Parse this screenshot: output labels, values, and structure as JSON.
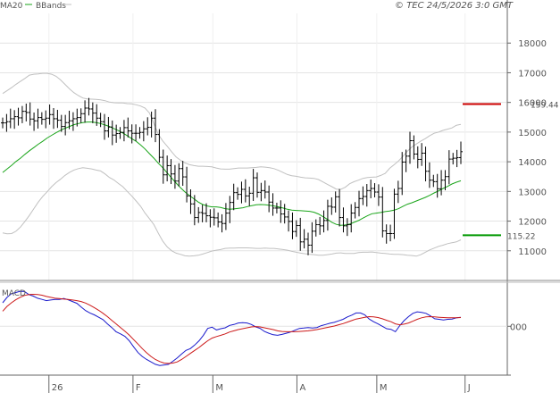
{
  "header": {
    "legend_ma": "MA20",
    "legend_bb": "BBands",
    "copyright": "© TEC 24/5/2026 3:0 GMT"
  },
  "colors": {
    "price": "#000000",
    "ma20": "#1aa51a",
    "bbands": "#c0c0c0",
    "macd_line": "#1a1acc",
    "signal_line": "#cc1a1a",
    "resistance": "#cc0000",
    "support": "#009900",
    "grid": "#e4e4e4",
    "axis": "#666666"
  },
  "chart_data": [
    {
      "type": "line",
      "panel": "price",
      "ylim": [
        10000,
        19000
      ],
      "yticks": [
        11000,
        12000,
        13000,
        14000,
        15000,
        16000,
        17000,
        18000
      ],
      "ytick_labels": [
        "11000",
        "12000",
        "13000",
        "14000",
        "15000",
        "16000",
        "17000",
        "18000"
      ],
      "xlim": [
        0,
        109
      ],
      "xtick_positions": [
        11,
        31,
        50,
        70,
        89,
        110
      ],
      "xtick_labels": [
        "26",
        "F",
        "M",
        "A",
        "M",
        "J"
      ],
      "series": [
        {
          "name": "MA20",
          "kind": "ma20",
          "values": [
            13640,
            13760,
            13880,
            14010,
            14120,
            14250,
            14370,
            14480,
            14590,
            14690,
            14800,
            14890,
            14980,
            15060,
            15130,
            15190,
            15250,
            15290,
            15320,
            15340,
            15340,
            15320,
            15290,
            15240,
            15190,
            15120,
            15050,
            14970,
            14880,
            14780,
            14690,
            14570,
            14430,
            14270,
            14120,
            13950,
            13800,
            13620,
            13450,
            13280,
            13120,
            12980,
            12860,
            12750,
            12640,
            12560,
            12510,
            12480,
            12480,
            12460,
            12420,
            12400,
            12410,
            12430,
            12450,
            12490,
            12520,
            12550,
            12560,
            12550,
            12530,
            12510,
            12480,
            12440,
            12400,
            12370,
            12360,
            12350,
            12340,
            12330,
            12300,
            12240,
            12150,
            12060,
            11960,
            11890,
            11860,
            11870,
            11900,
            11960,
            12020,
            12100,
            12180,
            12250,
            12270,
            12290,
            12320,
            12340,
            12370,
            12420,
            12500,
            12570,
            12620,
            12680,
            12740,
            12800,
            12870,
            12950,
            13020,
            13100,
            13170,
            13250,
            13310,
            13360
          ]
        },
        {
          "name": "BBands",
          "kind": "bb_upper",
          "values": [
            16300,
            16400,
            16500,
            16610,
            16710,
            16810,
            16920,
            16950,
            16960,
            16980,
            16980,
            16950,
            16880,
            16760,
            16610,
            16460,
            16330,
            16230,
            16150,
            16120,
            16110,
            16100,
            16090,
            16060,
            16010,
            15990,
            15980,
            15980,
            15960,
            15950,
            15920,
            15880,
            15810,
            15640,
            15290,
            14920,
            14700,
            14520,
            14330,
            14160,
            14050,
            13960,
            13900,
            13870,
            13850,
            13850,
            13840,
            13830,
            13790,
            13760,
            13750,
            13750,
            13770,
            13790,
            13790,
            13790,
            13800,
            13810,
            13830,
            13820,
            13800,
            13770,
            13710,
            13640,
            13570,
            13530,
            13510,
            13480,
            13460,
            13450,
            13440,
            13400,
            13320,
            13240,
            13160,
            13080,
            13070,
            13140,
            13260,
            13330,
            13380,
            13440,
            13470,
            13480,
            13490,
            13540,
            13610,
            13780,
            13900,
            14030,
            14190,
            14360,
            14500,
            14600,
            14700,
            14780,
            14880,
            14960,
            15000,
            15060,
            15100,
            15140,
            15230,
            15260
          ]
        },
        {
          "name": "BBands",
          "kind": "bb_lower",
          "values": [
            11600,
            11570,
            11580,
            11660,
            11800,
            11990,
            12190,
            12420,
            12640,
            12830,
            12990,
            13160,
            13300,
            13410,
            13540,
            13640,
            13720,
            13770,
            13800,
            13780,
            13760,
            13720,
            13690,
            13590,
            13470,
            13390,
            13270,
            13160,
            13000,
            12850,
            12680,
            12500,
            12270,
            12080,
            11880,
            11590,
            11320,
            11130,
            11000,
            10920,
            10880,
            10830,
            10820,
            10830,
            10850,
            10890,
            10940,
            10990,
            11020,
            11040,
            11080,
            11090,
            11090,
            11100,
            11100,
            11100,
            11090,
            11080,
            11080,
            11090,
            11080,
            11080,
            11060,
            11040,
            11020,
            10980,
            10950,
            10920,
            10900,
            10880,
            10870,
            10850,
            10850,
            10870,
            10890,
            10920,
            10930,
            10910,
            10910,
            10910,
            10940,
            10950,
            10950,
            10960,
            10940,
            10920,
            10910,
            10890,
            10880,
            10880,
            10870,
            10850,
            10840,
            10820,
            10870,
            10950,
            11030,
            11090,
            11150,
            11190,
            11240,
            11270,
            11300,
            11370
          ]
        },
        {
          "name": "Price",
          "kind": "ohlc",
          "values": [
            15310,
            15350,
            15450,
            15520,
            15480,
            15700,
            15660,
            15440,
            15380,
            15490,
            15430,
            15470,
            15590,
            15450,
            15400,
            15190,
            15320,
            15380,
            15450,
            15490,
            15620,
            15810,
            15780,
            15640,
            15470,
            15350,
            15040,
            15170,
            14900,
            14950,
            14990,
            15150,
            15040,
            14960,
            14960,
            14990,
            15110,
            15160,
            15470,
            14920,
            14150,
            13560,
            13870,
            13590,
            13350,
            13770,
            13490,
            12850,
            12580,
            12120,
            12290,
            12260,
            12180,
            12130,
            12110,
            11970,
            11920,
            12270,
            12630,
            12960,
            12900,
            13070,
            12850,
            12940,
            13460,
            12970,
            13030,
            12980,
            12640,
            12440,
            12440,
            12240,
            12140,
            11990,
            11650,
            11850,
            11300,
            11390,
            11190,
            11660,
            11880,
            11840,
            12020,
            12500,
            12470,
            12820,
            12120,
            11840,
            11880,
            12270,
            12460,
            12760,
            12830,
            13030,
            13100,
            12980,
            12810,
            11670,
            11580,
            11580,
            12910,
            13100,
            13990,
            14190,
            14710,
            14260,
            14080,
            14290,
            13680,
            13380,
            13330,
            13090,
            13380,
            13500,
            14090,
            14120,
            14140,
            14340
          ]
        }
      ]
    },
    {
      "type": "line",
      "panel": "macd",
      "ylim": [
        -1500,
        1400
      ],
      "yticks": [
        0
      ],
      "ytick_labels": [
        "000"
      ],
      "title": "MACD",
      "series": [
        {
          "name": "MACD",
          "kind": "macd",
          "values": [
            780,
            960,
            1080,
            1120,
            1160,
            1150,
            1050,
            1000,
            930,
            890,
            850,
            870,
            890,
            890,
            920,
            880,
            820,
            760,
            640,
            520,
            440,
            380,
            300,
            220,
            80,
            -40,
            -180,
            -250,
            -330,
            -480,
            -680,
            -870,
            -1000,
            -1100,
            -1180,
            -1260,
            -1300,
            -1280,
            -1260,
            -1160,
            -1050,
            -920,
            -800,
            -740,
            -620,
            -480,
            -300,
            -70,
            -30,
            -120,
            -80,
            -50,
            30,
            60,
            110,
            120,
            110,
            60,
            -20,
            -70,
            -170,
            -230,
            -280,
            -300,
            -270,
            -230,
            -190,
            -130,
            -70,
            -60,
            -40,
            -60,
            -40,
            20,
            60,
            100,
            130,
            180,
            230,
            310,
            370,
            440,
            440,
            380,
            240,
            150,
            80,
            0,
            -80,
            -100,
            -180,
            20,
            190,
            320,
            430,
            480,
            460,
            430,
            350,
            250,
            230,
            210,
            230,
            240,
            280,
            300
          ]
        },
        {
          "name": "Signal",
          "kind": "signal",
          "values": [
            500,
            660,
            780,
            880,
            960,
            1020,
            1050,
            1060,
            1050,
            1030,
            990,
            960,
            930,
            920,
            900,
            890,
            870,
            850,
            820,
            770,
            700,
            620,
            530,
            430,
            320,
            200,
            80,
            -40,
            -160,
            -290,
            -440,
            -590,
            -740,
            -880,
            -1000,
            -1100,
            -1170,
            -1220,
            -1230,
            -1220,
            -1180,
            -1100,
            -1000,
            -900,
            -800,
            -700,
            -590,
            -480,
            -390,
            -340,
            -300,
            -250,
            -190,
            -150,
            -110,
            -80,
            -50,
            -20,
            -10,
            -20,
            -50,
            -80,
            -110,
            -150,
            -170,
            -180,
            -180,
            -180,
            -170,
            -160,
            -150,
            -130,
            -110,
            -80,
            -50,
            -20,
            10,
            50,
            90,
            140,
            190,
            240,
            270,
            300,
            320,
            310,
            290,
            250,
            200,
            150,
            80,
            50,
            70,
            110,
            170,
            230,
            280,
            310,
            320,
            310,
            300,
            290,
            280,
            280,
            285,
            290
          ]
        }
      ]
    }
  ],
  "annotations": {
    "resistance_label": "159.44",
    "support_label": "115.22",
    "resistance_value": 15944,
    "support_value": 11522
  }
}
